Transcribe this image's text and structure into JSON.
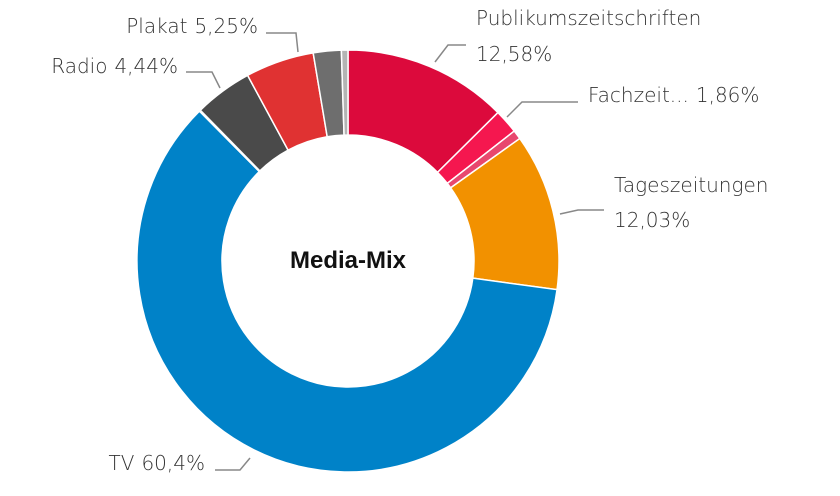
{
  "chart_data": {
    "type": "pie",
    "title": "Media-Mix",
    "categories": [
      "Publikumszeitschriften",
      "Fachzeit...",
      null,
      "Tageszeitungen",
      "TV",
      null,
      "Radio",
      "Plakat",
      null,
      null
    ],
    "values": [
      12.58,
      1.86,
      0.7,
      12.03,
      60.4,
      0.1,
      4.44,
      5.25,
      2.14,
      0.5
    ],
    "value_labels": [
      "12,58%",
      "1,86%",
      null,
      "12,03%",
      "60,4%",
      null,
      "4,44%",
      "5,25%",
      null,
      null
    ],
    "colors": [
      "#dc0a3c",
      "#f5174f",
      "#e8476e",
      "#f29100",
      "#0082c8",
      "#1a2a6c",
      "#4a4a4a",
      "#e03232",
      "#6e6e6e",
      "#b4b4b4"
    ],
    "donut": true
  }
}
